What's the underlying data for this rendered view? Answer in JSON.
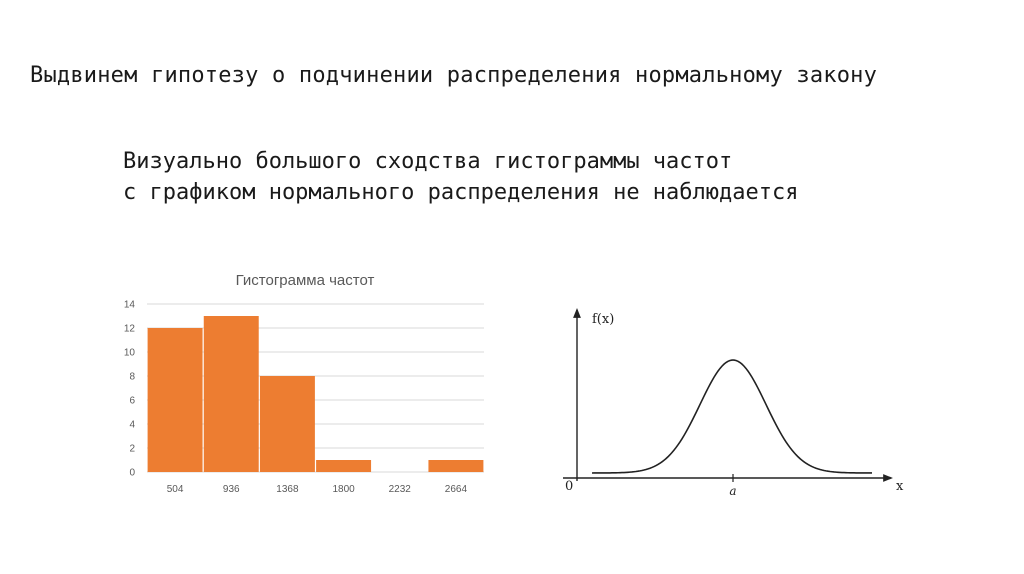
{
  "slide": {
    "heading": "Выдвинем гипотезу о подчинении распределения нормальному закону",
    "note_line1": "Визуально большого сходства гистограммы частот",
    "note_line2": "с графиком нормального распределения не наблюдается"
  },
  "chart_data": [
    {
      "type": "bar",
      "title": "Гистограмма частот",
      "categories": [
        "504",
        "936",
        "1368",
        "1800",
        "2232",
        "2664"
      ],
      "values": [
        12,
        13,
        8,
        1,
        0,
        1
      ],
      "ylim": [
        0,
        14
      ],
      "yticks": [
        0,
        2,
        4,
        6,
        8,
        10,
        12,
        14
      ],
      "xlabel": "",
      "ylabel": "",
      "grid": true,
      "bar_color": "#ed7d31",
      "grid_color": "#d9d9d9"
    },
    {
      "type": "line",
      "ylabel": "f(x)",
      "xlabel": "x",
      "origin_label": "0",
      "mean_label": "a",
      "curve_color": "#222222"
    }
  ]
}
